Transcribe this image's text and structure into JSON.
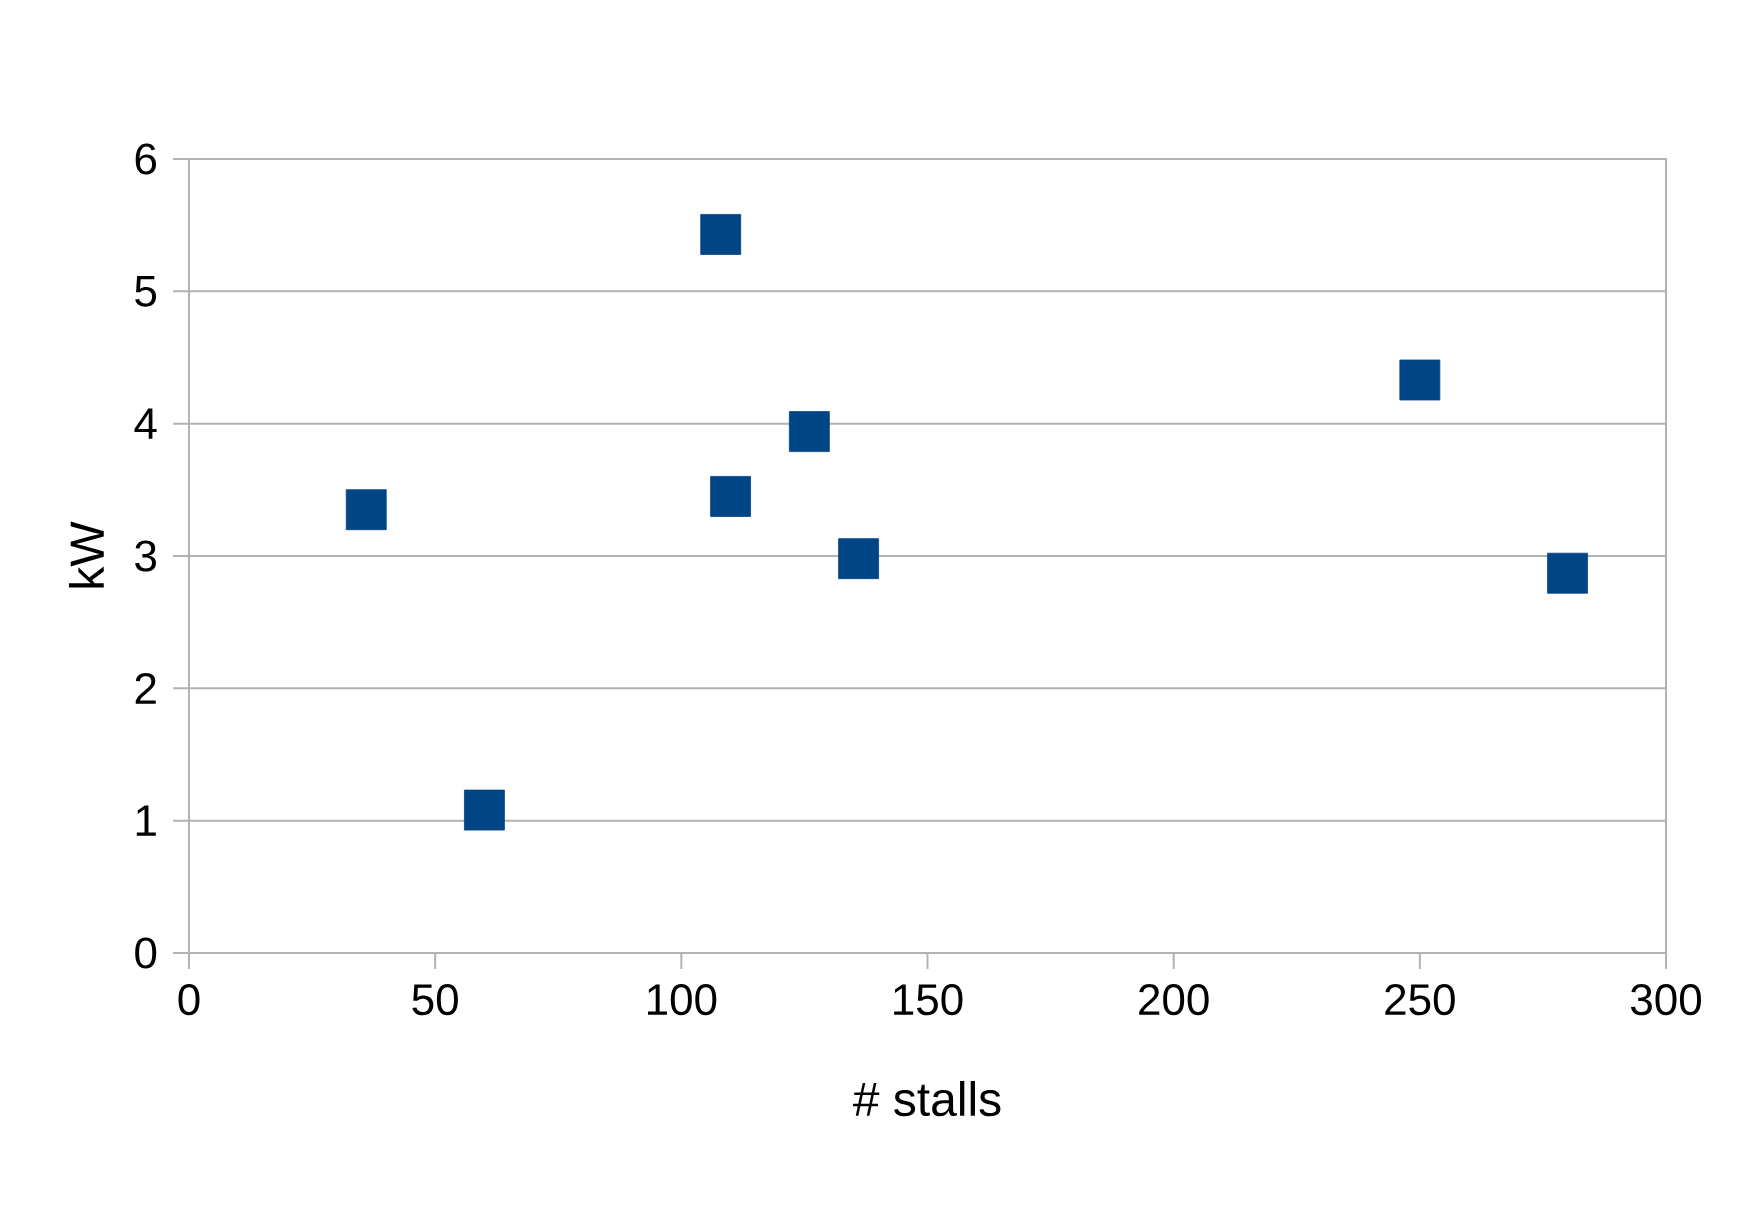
{
  "chart_data": {
    "type": "scatter",
    "xlabel": "# stalls",
    "ylabel": "kW",
    "x": [
      36,
      60,
      108,
      110,
      126,
      136,
      250,
      280
    ],
    "values": [
      3.35,
      1.08,
      5.43,
      3.45,
      3.94,
      2.98,
      4.33,
      2.87
    ],
    "color": "#004586",
    "marker": "square",
    "xlim": [
      0,
      300
    ],
    "xticks": [
      0,
      50,
      100,
      150,
      200,
      250,
      300
    ],
    "ylim": [
      0,
      6
    ],
    "yticks": [
      0,
      1,
      2,
      3,
      4,
      5,
      6
    ],
    "grid": "y"
  }
}
